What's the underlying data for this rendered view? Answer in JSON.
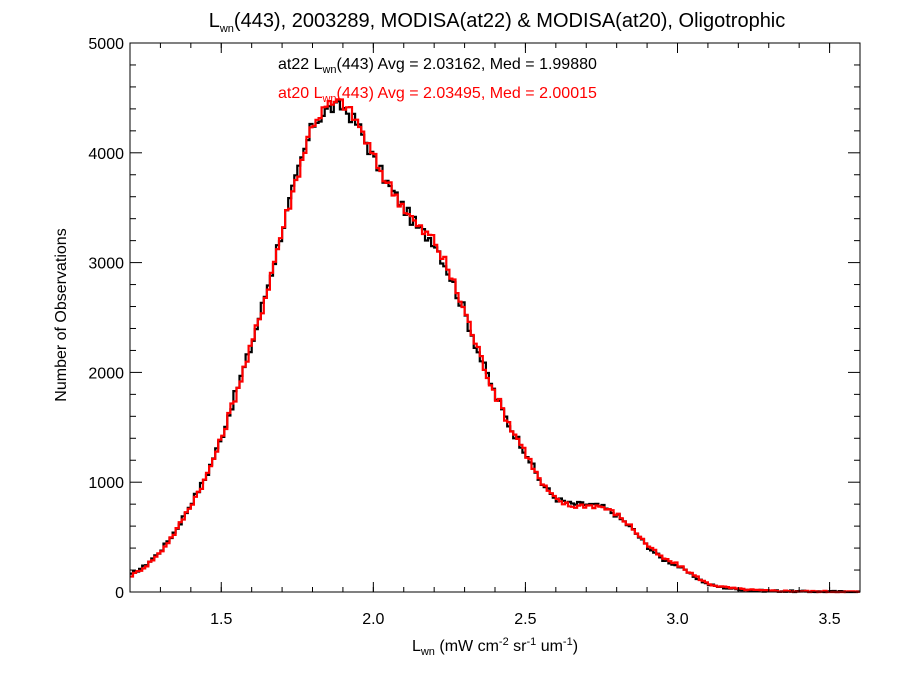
{
  "chart_data": {
    "type": "line",
    "title": {
      "main": "L",
      "sub": "wn",
      "rest": "(443), 2003289, MODISA(at22) & MODISA(at20), Oligotrophic"
    },
    "xlabel": {
      "main": "L",
      "sub": "wn",
      "part1": " (mW cm",
      "sup1": "-2",
      "part2": " sr",
      "sup2": "-1",
      "part3": " um",
      "sup3": "-1",
      "part4": ")"
    },
    "ylabel": "Number of Observations",
    "xlim": [
      1.2,
      3.6
    ],
    "ylim": [
      0,
      5000
    ],
    "x_ticks": [
      "1.5",
      "2.0",
      "2.5",
      "3.0",
      "3.5"
    ],
    "y_ticks": [
      "0",
      "1000",
      "2000",
      "3000",
      "4000",
      "5000"
    ],
    "annotations": [
      {
        "pre": "at22 L",
        "sub": "wn",
        "post": "(443) Avg = 2.03162, Med = 1.99880",
        "color": "#000000"
      },
      {
        "pre": "at20 L",
        "sub": "wn",
        "post": "(443) Avg = 2.03495, Med = 2.00015",
        "color": "#ff0000"
      }
    ],
    "series": [
      {
        "color": "#000000",
        "x": [
          1.2,
          1.25,
          1.3,
          1.35,
          1.4,
          1.45,
          1.5,
          1.55,
          1.6,
          1.65,
          1.7,
          1.75,
          1.8,
          1.85,
          1.9,
          1.95,
          2.0,
          2.05,
          2.1,
          2.15,
          2.2,
          2.25,
          2.3,
          2.35,
          2.4,
          2.45,
          2.5,
          2.55,
          2.6,
          2.65,
          2.7,
          2.75,
          2.8,
          2.85,
          2.9,
          2.95,
          3.0,
          3.05,
          3.1,
          3.15,
          3.2,
          3.25,
          3.3,
          3.4,
          3.5,
          3.6
        ],
        "y": [
          150,
          240,
          370,
          560,
          800,
          1050,
          1400,
          1830,
          2250,
          2750,
          3300,
          3800,
          4250,
          4400,
          4420,
          4250,
          3950,
          3700,
          3500,
          3300,
          3200,
          2900,
          2550,
          2150,
          1800,
          1500,
          1280,
          1000,
          850,
          800,
          800,
          780,
          700,
          580,
          420,
          300,
          240,
          150,
          70,
          40,
          25,
          15,
          10,
          5,
          3,
          2
        ]
      },
      {
        "color": "#ff0000",
        "x": [
          1.2,
          1.25,
          1.3,
          1.35,
          1.4,
          1.45,
          1.5,
          1.55,
          1.6,
          1.65,
          1.7,
          1.75,
          1.8,
          1.85,
          1.9,
          1.95,
          2.0,
          2.05,
          2.1,
          2.15,
          2.2,
          2.25,
          2.3,
          2.35,
          2.4,
          2.45,
          2.5,
          2.55,
          2.6,
          2.65,
          2.7,
          2.75,
          2.8,
          2.85,
          2.9,
          2.95,
          3.0,
          3.05,
          3.1,
          3.15,
          3.2,
          3.25,
          3.3,
          3.4,
          3.5,
          3.6
        ],
        "y": [
          140,
          230,
          360,
          550,
          790,
          1040,
          1390,
          1820,
          2240,
          2740,
          3290,
          3790,
          4270,
          4430,
          4460,
          4270,
          3960,
          3710,
          3510,
          3310,
          3210,
          2910,
          2560,
          2160,
          1810,
          1510,
          1280,
          1000,
          840,
          780,
          790,
          780,
          710,
          590,
          430,
          310,
          250,
          160,
          75,
          45,
          28,
          17,
          11,
          6,
          3,
          2
        ]
      }
    ]
  }
}
